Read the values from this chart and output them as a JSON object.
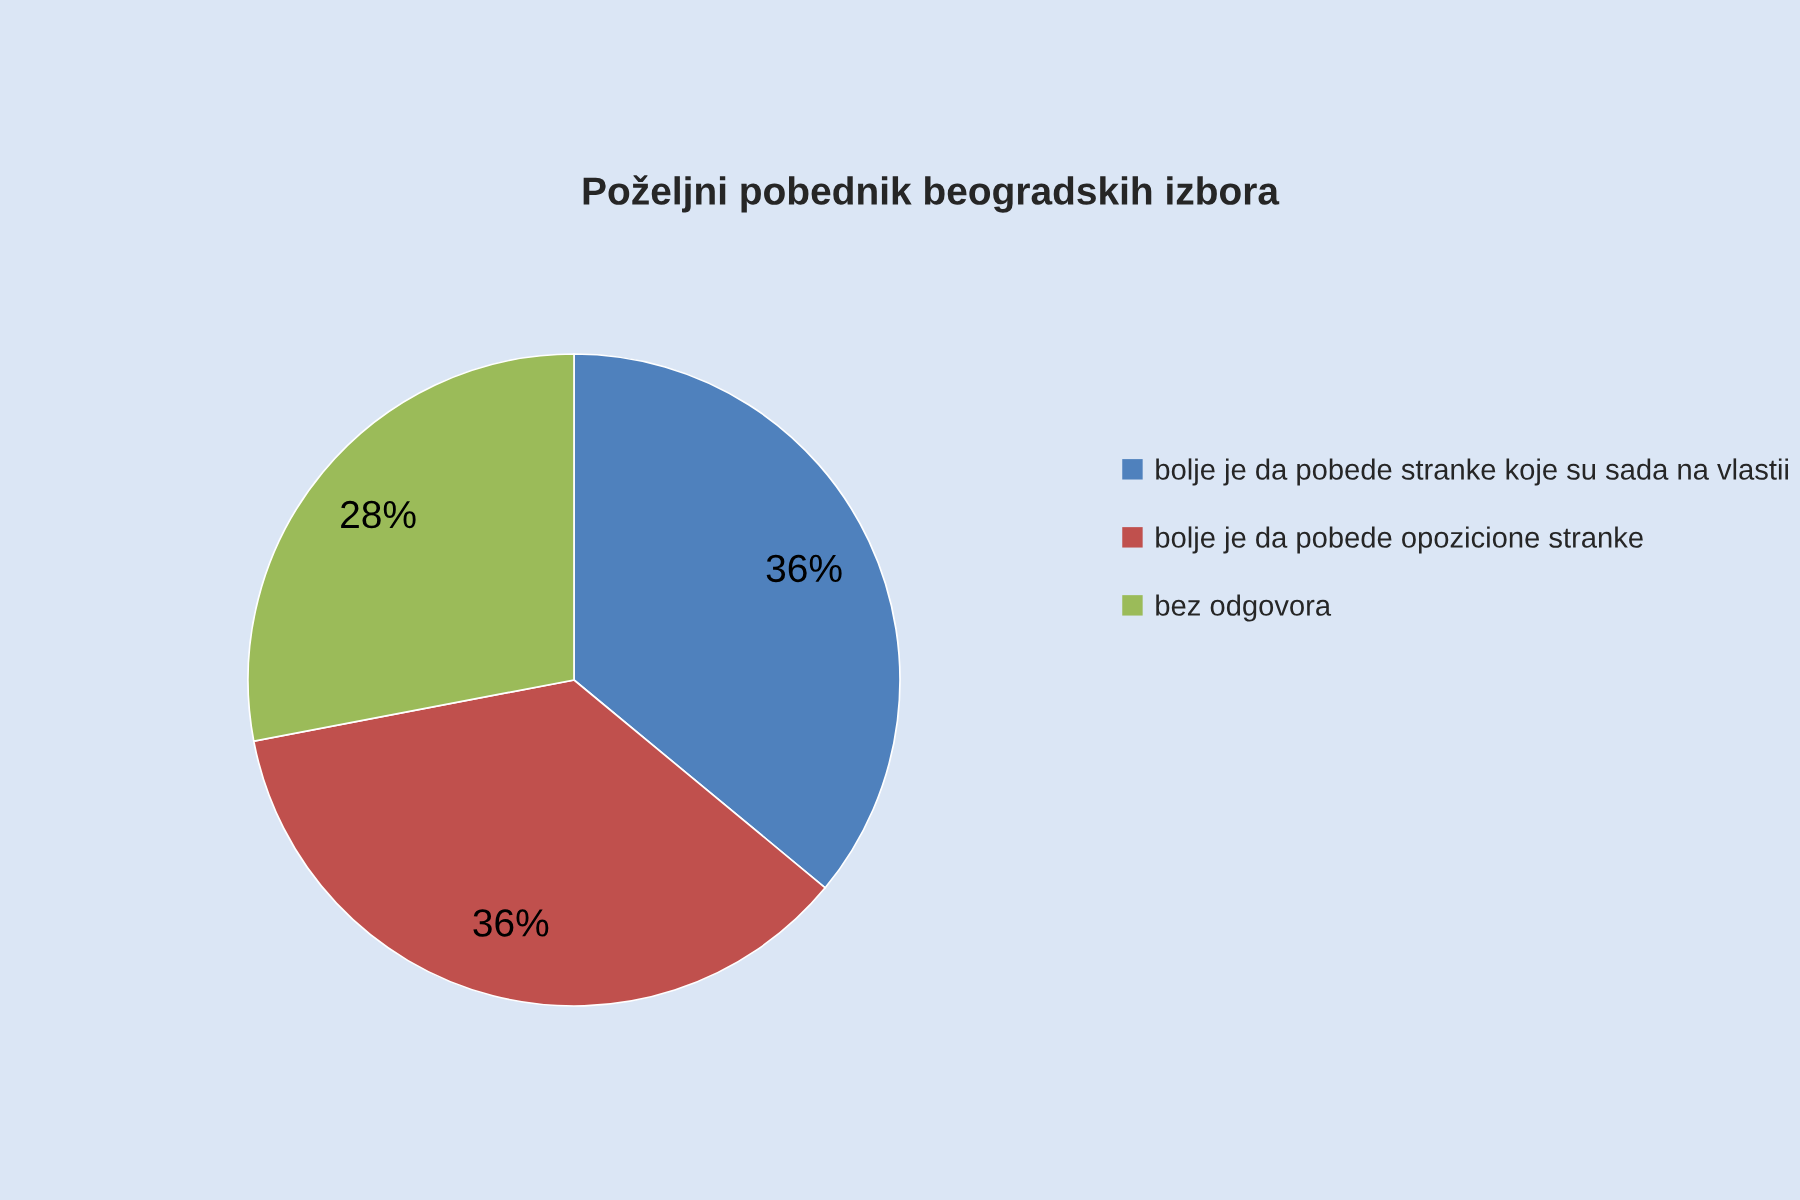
{
  "chart_data": {
    "type": "pie",
    "title": "Poželjni pobednik beogradskih izbora",
    "categories": [
      "bolje je da pobede stranke koje su sada na vlastii",
      "bolje je da pobede opozicione stranke",
      "bez odgovora"
    ],
    "values": [
      36,
      36,
      28
    ],
    "colors": [
      "#4f81bd",
      "#c0504d",
      "#9bbb59"
    ],
    "value_labels": [
      "36%",
      "36%",
      "28%"
    ],
    "legend": "right"
  }
}
